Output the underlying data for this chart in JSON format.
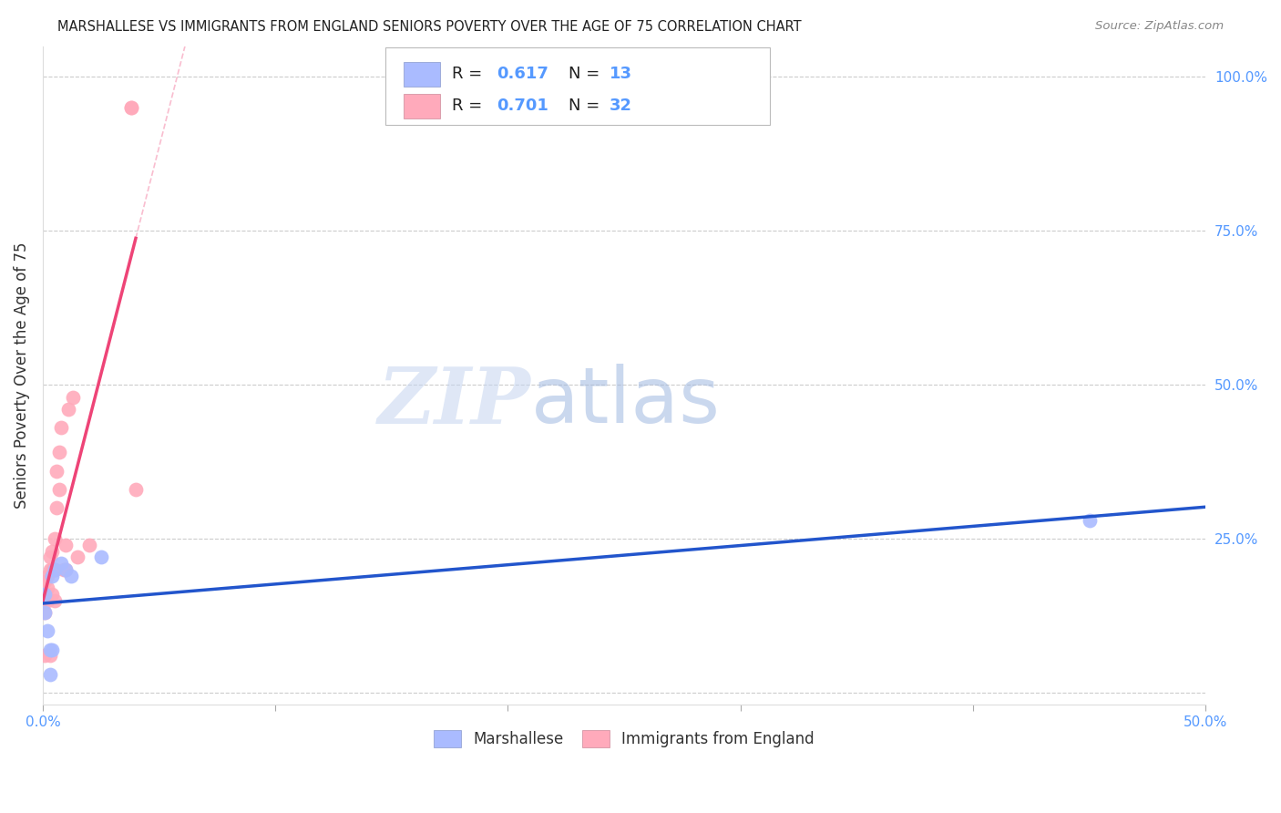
{
  "title": "MARSHALLESE VS IMMIGRANTS FROM ENGLAND SENIORS POVERTY OVER THE AGE OF 75 CORRELATION CHART",
  "source": "Source: ZipAtlas.com",
  "tick_color": "#5599ff",
  "ylabel": "Seniors Poverty Over the Age of 75",
  "xlim": [
    0.0,
    0.5
  ],
  "ylim": [
    -0.02,
    1.05
  ],
  "xticks": [
    0.0,
    0.1,
    0.2,
    0.3,
    0.4,
    0.5
  ],
  "xticklabels": [
    "0.0%",
    "",
    "",
    "",
    "",
    "50.0%"
  ],
  "yticks_right": [
    0.0,
    0.25,
    0.5,
    0.75,
    1.0
  ],
  "yticklabels_right": [
    "",
    "25.0%",
    "50.0%",
    "75.0%",
    "100.0%"
  ],
  "grid_color": "#cccccc",
  "background_color": "#ffffff",
  "marshallese_color": "#aabbff",
  "england_color": "#ffaabb",
  "marshallese_line_color": "#2255cc",
  "england_line_color": "#ee4477",
  "legend_R1": "0.617",
  "legend_N1": "13",
  "legend_R2": "0.701",
  "legend_N2": "32",
  "watermark_zip": "ZIP",
  "watermark_atlas": "atlas",
  "marshallese_x": [
    0.001,
    0.001,
    0.002,
    0.003,
    0.003,
    0.004,
    0.004,
    0.005,
    0.008,
    0.01,
    0.012,
    0.025,
    0.45
  ],
  "marshallese_y": [
    0.16,
    0.13,
    0.1,
    0.07,
    0.03,
    0.07,
    0.19,
    0.2,
    0.21,
    0.2,
    0.19,
    0.22,
    0.28
  ],
  "england_x": [
    0.001,
    0.001,
    0.001,
    0.001,
    0.001,
    0.002,
    0.002,
    0.002,
    0.003,
    0.003,
    0.003,
    0.004,
    0.004,
    0.004,
    0.005,
    0.005,
    0.005,
    0.006,
    0.006,
    0.007,
    0.007,
    0.008,
    0.009,
    0.01,
    0.01,
    0.011,
    0.013,
    0.015,
    0.02,
    0.038,
    0.038,
    0.04
  ],
  "england_y": [
    0.13,
    0.15,
    0.16,
    0.18,
    0.06,
    0.15,
    0.17,
    0.19,
    0.2,
    0.22,
    0.06,
    0.16,
    0.2,
    0.23,
    0.25,
    0.15,
    0.2,
    0.3,
    0.36,
    0.33,
    0.39,
    0.43,
    0.2,
    0.24,
    0.2,
    0.46,
    0.48,
    0.22,
    0.24,
    0.95,
    0.95,
    0.33
  ]
}
